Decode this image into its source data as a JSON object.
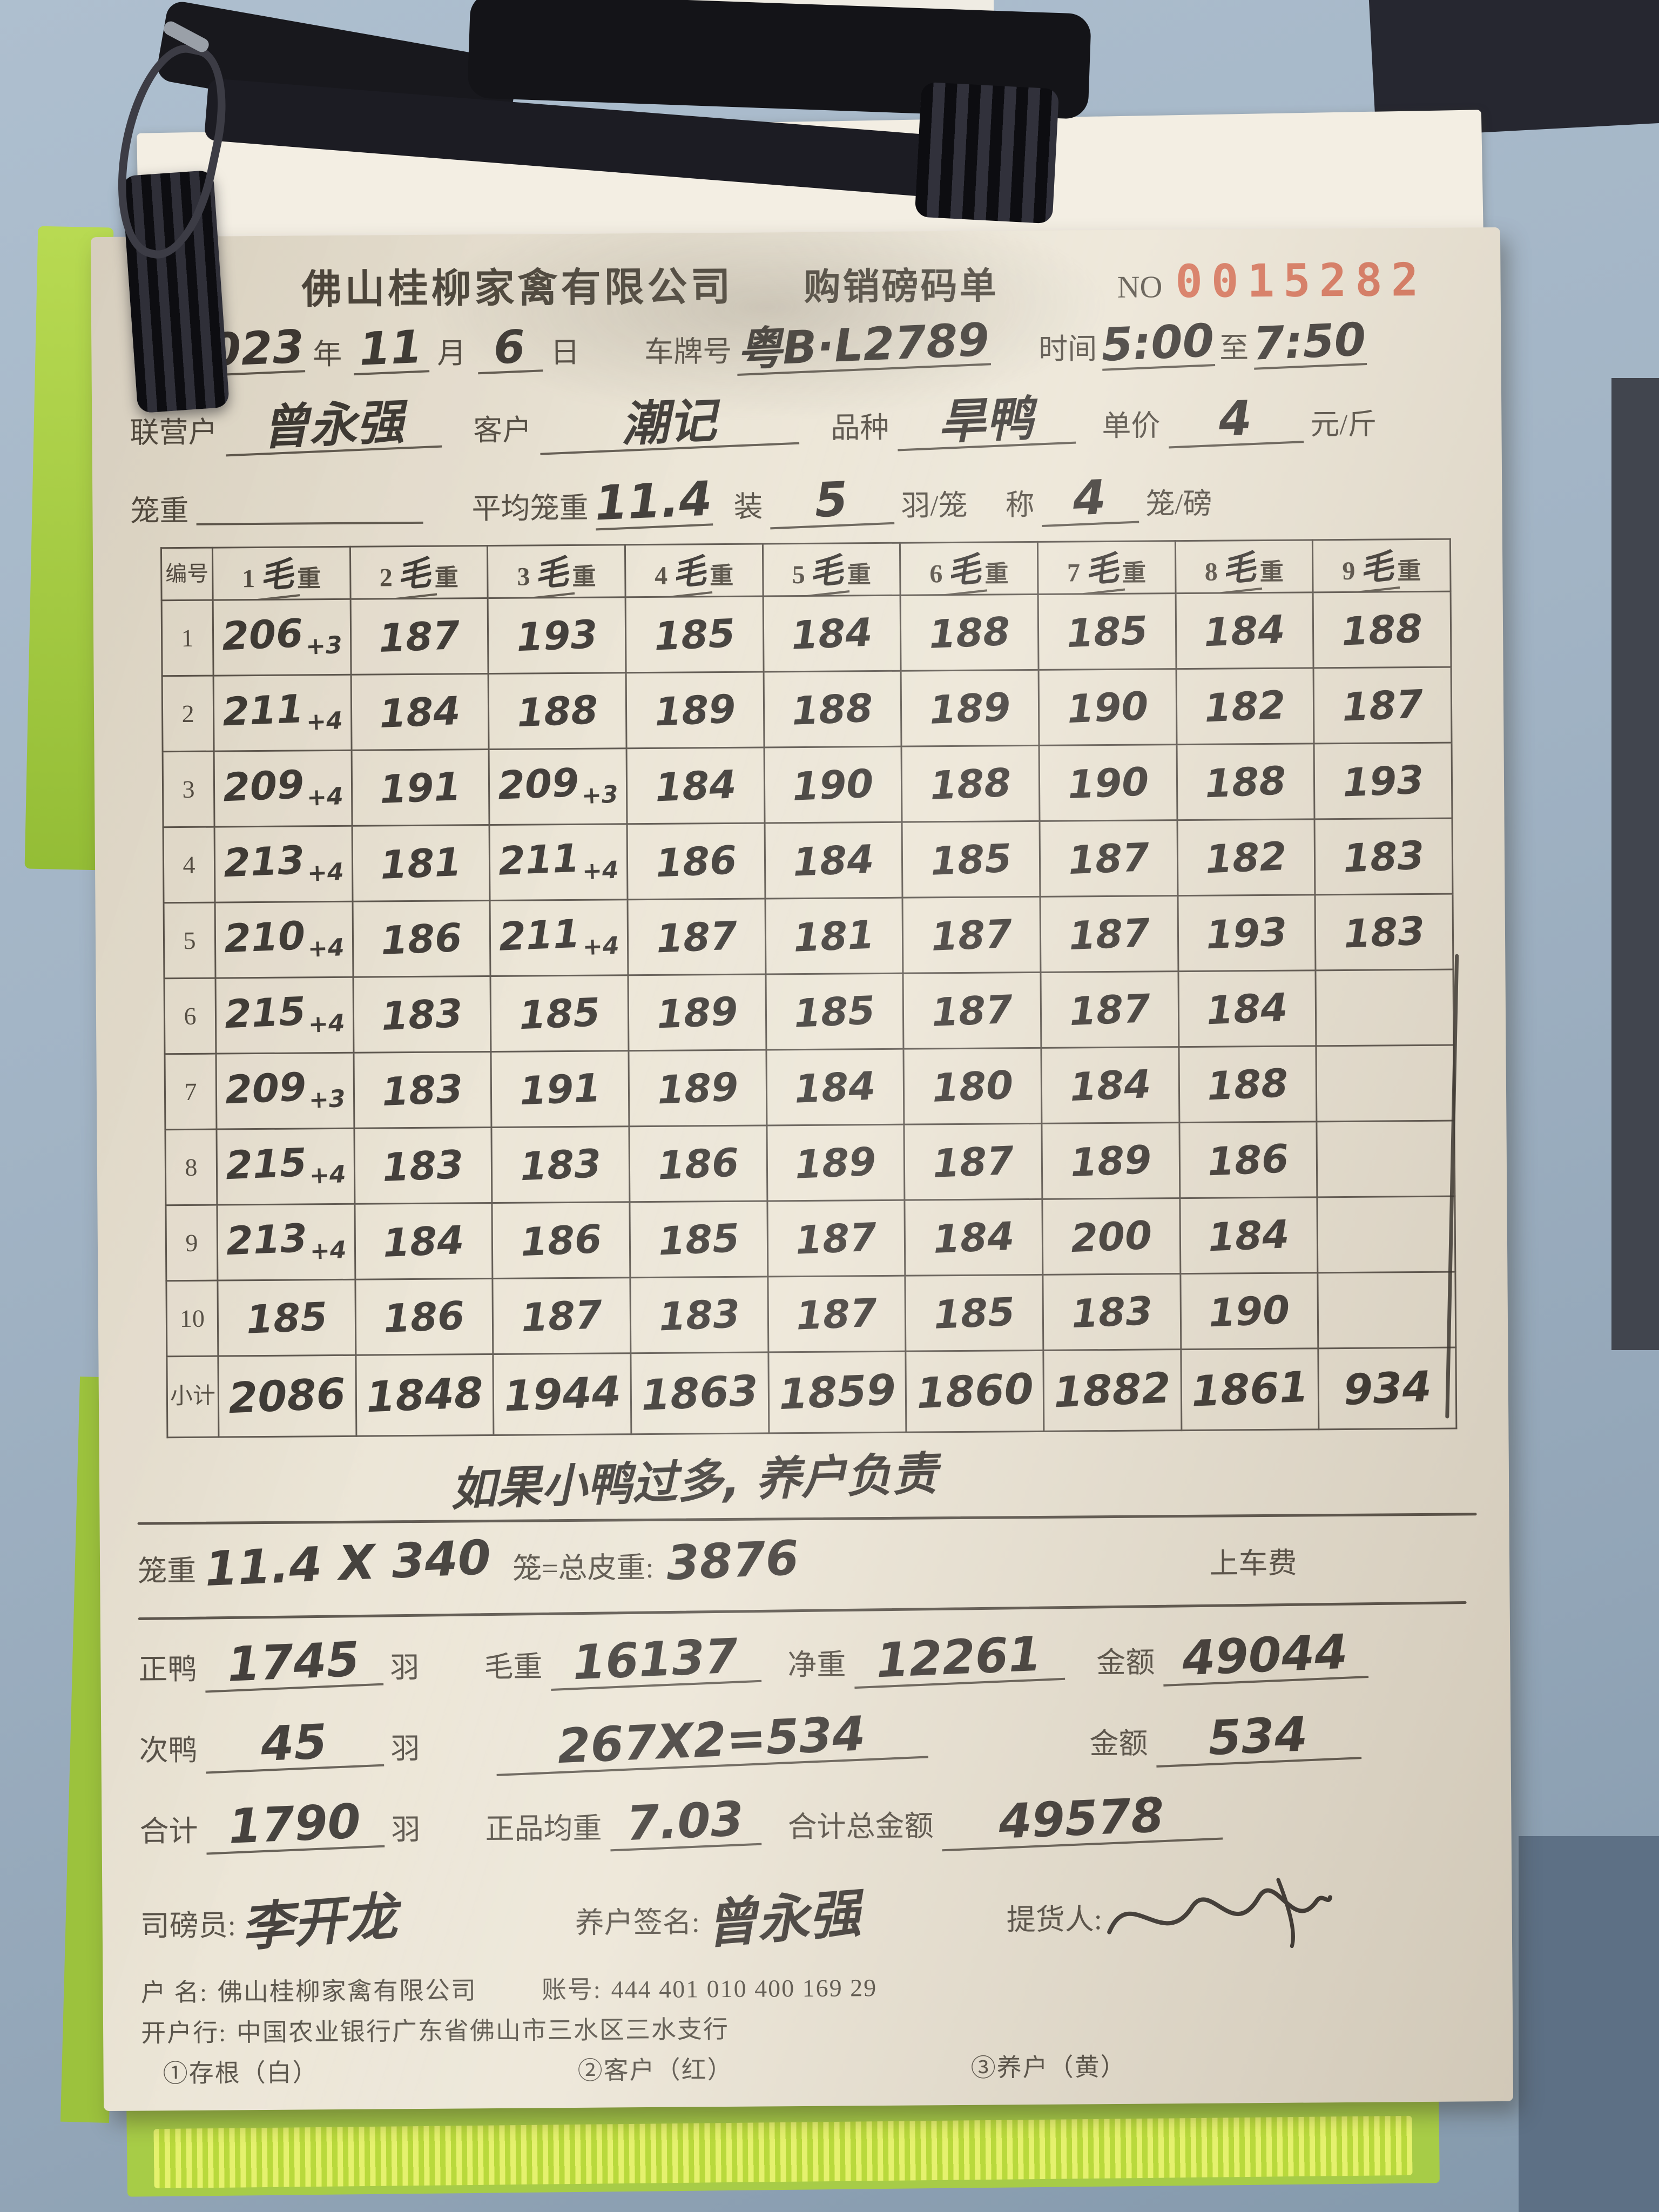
{
  "photo": {
    "background_color": "#a2b4c5",
    "clipboard_color": "#a7cc47",
    "paper_color": "#eae3d3",
    "serial_color": "#d4694e"
  },
  "header": {
    "company": "佛山桂柳家禽有限公司",
    "form_title": "购销磅码单",
    "no_label": "NO",
    "no_value": "0015282"
  },
  "info": {
    "year": "2023",
    "year_label": "年",
    "month": "11",
    "month_label": "月",
    "day": "6",
    "day_label": "日",
    "plate_label": "车牌号",
    "plate": "粤B·L2789",
    "time_label": "时间",
    "time_from": "5:00",
    "to_label": "至",
    "time_to": "7:50",
    "partner_label": "联营户",
    "partner": "曾永强",
    "customer_label": "客户",
    "customer": "潮记",
    "breed_label": "品种",
    "breed": "旱鸭",
    "price_label": "单价",
    "price": "4",
    "price_unit": "元/斤",
    "cage_weight_label": "笼重",
    "avg_cage_label": "平均笼重",
    "avg_cage": "11.4",
    "load_label": "装",
    "load": "5",
    "load_unit": "羽/笼",
    "weigh_label": "称",
    "weigh": "4",
    "weigh_unit": "笼/磅"
  },
  "table": {
    "corner_label": "编号",
    "col_numbers": [
      "1",
      "2",
      "3",
      "4",
      "5",
      "6",
      "7",
      "8",
      "9"
    ],
    "col_hw_char": "毛",
    "col_weight_char": "重",
    "rows": [
      {
        "no": "1",
        "cells": [
          "206+3",
          "187",
          "193",
          "185",
          "184",
          "188",
          "185",
          "184",
          "188"
        ]
      },
      {
        "no": "2",
        "cells": [
          "211+4",
          "184",
          "188",
          "189",
          "188",
          "189",
          "190",
          "182",
          "187"
        ]
      },
      {
        "no": "3",
        "cells": [
          "209+4",
          "191",
          "209+3",
          "184",
          "190",
          "188",
          "190",
          "188",
          "193"
        ]
      },
      {
        "no": "4",
        "cells": [
          "213+4",
          "181",
          "211+4",
          "186",
          "184",
          "185",
          "187",
          "182",
          "183"
        ]
      },
      {
        "no": "5",
        "cells": [
          "210+4",
          "186",
          "211+4",
          "187",
          "181",
          "187",
          "187",
          "193",
          "183"
        ]
      },
      {
        "no": "6",
        "cells": [
          "215+4",
          "183",
          "185",
          "189",
          "185",
          "187",
          "187",
          "184",
          ""
        ]
      },
      {
        "no": "7",
        "cells": [
          "209+3",
          "183",
          "191",
          "189",
          "184",
          "180",
          "184",
          "188",
          ""
        ]
      },
      {
        "no": "8",
        "cells": [
          "215+4",
          "183",
          "183",
          "186",
          "189",
          "187",
          "189",
          "186",
          ""
        ]
      },
      {
        "no": "9",
        "cells": [
          "213+4",
          "184",
          "186",
          "185",
          "187",
          "184",
          "200",
          "184",
          ""
        ]
      },
      {
        "no": "10",
        "cells": [
          "185",
          "186",
          "187",
          "183",
          "187",
          "185",
          "183",
          "190",
          ""
        ]
      }
    ],
    "subtotal_label": "小计",
    "subtotal": [
      "2086",
      "1848",
      "1944",
      "1863",
      "1859",
      "1860",
      "1882",
      "1861",
      "934"
    ]
  },
  "note": "如果小鸭过多, 养户负责",
  "summary": {
    "cage_calc_label": "笼重",
    "cage_calc": "11.4 X 340",
    "tare_label": "笼=总皮重:",
    "tare": "3876",
    "loading_fee_label": "上车费",
    "zhengya_label": "正鸭",
    "zhengya": "1745",
    "unit_yu": "羽",
    "gross_label": "毛重",
    "gross": "16137",
    "net_label": "净重",
    "net": "12261",
    "amount_label": "金额",
    "amount": "49044",
    "ciya_label": "次鸭",
    "ciya": "45",
    "ciya_calc": "267X2=534",
    "ciya_amount_label": "金额",
    "ciya_amount": "534",
    "total_label": "合计",
    "total": "1790",
    "avg_label": "正品均重",
    "avg": "7.03",
    "total_amount_label": "合计总金额",
    "total_amount": "49578",
    "weigher_label": "司磅员:",
    "weigher": "李开龙",
    "farmer_label": "养户签名:",
    "farmer": "曾永强",
    "consignee_label": "提货人:"
  },
  "footer": {
    "account_name_label": "户 名:",
    "account_name": "佛山桂柳家禽有限公司",
    "account_no_label": "账号:",
    "account_no": "444 401 010 400 169 29",
    "bank_label": "开户行:",
    "bank": "中国农业银行广东省佛山市三水区三水支行",
    "copies": [
      "①存根（白）",
      "②客户（红）",
      "③养户（黄）"
    ]
  }
}
